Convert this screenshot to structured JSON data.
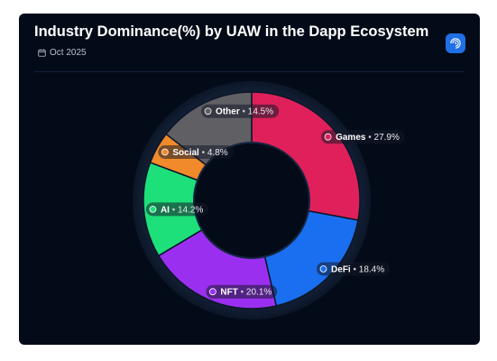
{
  "header": {
    "title": "Industry Dominance(%) by UAW in the Dapp Ecosystem",
    "date": "Oct 2025",
    "date_icon": "calendar-icon",
    "brand_icon": "signal-logo-icon"
  },
  "chart_data": {
    "type": "pie",
    "donut": true,
    "start_angle_deg": 0,
    "slices": [
      {
        "name": "Games",
        "value": 27.9,
        "label": "27.9%",
        "color": "#e0205a"
      },
      {
        "name": "DeFi",
        "value": 18.4,
        "label": "18.4%",
        "color": "#1a6ff0"
      },
      {
        "name": "NFT",
        "value": 20.1,
        "label": "20.1%",
        "color": "#9b2ff0"
      },
      {
        "name": "AI",
        "value": 14.2,
        "label": "14.2%",
        "color": "#1ee07a"
      },
      {
        "name": "Social",
        "value": 4.8,
        "label": "4.8%",
        "color": "#f08a2a"
      },
      {
        "name": "Other",
        "value": 14.5,
        "label": "14.5%",
        "color": "#5f5f64"
      }
    ],
    "legend": "none",
    "data_labels": "inside-pills"
  },
  "colors": {
    "card_background": "#040b18",
    "brand_accent": "#1f6fe5"
  }
}
